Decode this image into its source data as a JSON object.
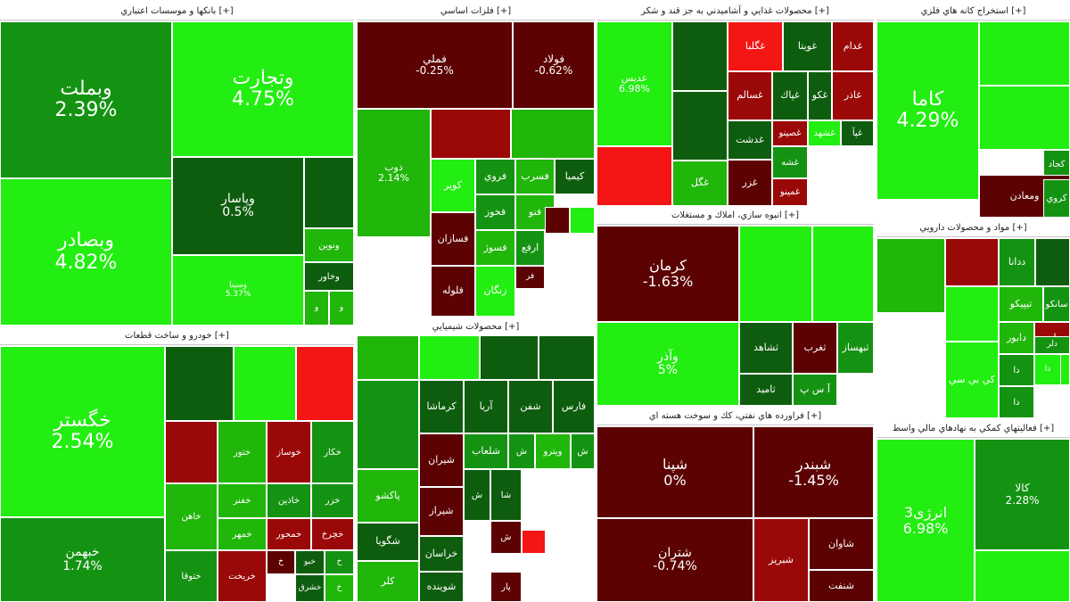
{
  "colors": {
    "strong_pos": "#22ee11",
    "pos": "#20b60a",
    "mid_pos": "#149312",
    "weak_pos": "#0e5d0e",
    "dark_neg": "#5c0202",
    "neg": "#9a0808",
    "strong_neg": "#f41515"
  },
  "sectors": [
    {
      "id": "banks",
      "title": "بانکها و موسسات اعتباري [+]",
      "tiles": [
        {
          "sym": "وبملت",
          "pct": "2.39%",
          "c": "mid_pos"
        },
        {
          "sym": "وتجارت",
          "pct": "4.75%",
          "c": "strong_pos"
        },
        {
          "sym": "وبصادر",
          "pct": "4.82%",
          "c": "strong_pos"
        },
        {
          "sym": "وپاسار",
          "pct": "0.5%",
          "c": "weak_pos"
        },
        {
          "sym": "",
          "pct": "",
          "c": "weak_pos"
        },
        {
          "sym": "وسينا",
          "pct": "5.37%",
          "c": "strong_pos"
        },
        {
          "sym": "ونوين",
          "pct": "",
          "c": "pos"
        },
        {
          "sym": "وخاور",
          "pct": "",
          "c": "weak_pos"
        },
        {
          "sym": "و",
          "pct": "",
          "c": "pos"
        },
        {
          "sym": "و",
          "pct": "",
          "c": "pos"
        }
      ]
    },
    {
      "id": "auto",
      "title": "خودرو و ساخت قطعات [+]",
      "tiles": [
        {
          "sym": "خگستر",
          "pct": "2.54%",
          "c": "strong_pos"
        },
        {
          "sym": "خبهمن",
          "pct": "1.74%",
          "c": "mid_pos"
        },
        {
          "sym": "",
          "pct": "",
          "c": "weak_pos"
        },
        {
          "sym": "",
          "pct": "",
          "c": "strong_pos"
        },
        {
          "sym": "",
          "pct": "",
          "c": "strong_neg"
        },
        {
          "sym": "",
          "pct": "",
          "c": "neg"
        },
        {
          "sym": "ختور",
          "pct": "",
          "c": "pos"
        },
        {
          "sym": "خوساز",
          "pct": "",
          "c": "neg"
        },
        {
          "sym": "خكار",
          "pct": "",
          "c": "mid_pos"
        },
        {
          "sym": "خاهن",
          "pct": "",
          "c": "pos"
        },
        {
          "sym": "خفنر",
          "pct": "",
          "c": "pos"
        },
        {
          "sym": "خاذين",
          "pct": "",
          "c": "mid_pos"
        },
        {
          "sym": "خزر",
          "pct": "",
          "c": "mid_pos"
        },
        {
          "sym": "خمهر",
          "pct": "",
          "c": "pos"
        },
        {
          "sym": "خمحور",
          "pct": "",
          "c": "neg"
        },
        {
          "sym": "خچرخ",
          "pct": "",
          "c": "neg"
        },
        {
          "sym": "ختوقا",
          "pct": "",
          "c": "mid_pos"
        },
        {
          "sym": "خريخت",
          "pct": "",
          "c": "neg"
        },
        {
          "sym": "خ",
          "pct": "",
          "c": "dark_neg"
        },
        {
          "sym": "خبو",
          "pct": "",
          "c": "weak_pos"
        },
        {
          "sym": "خ",
          "pct": "",
          "c": "mid_pos"
        },
        {
          "sym": "خشرق",
          "pct": "",
          "c": "weak_pos"
        },
        {
          "sym": "خ",
          "pct": "",
          "c": "pos"
        }
      ]
    },
    {
      "id": "metals",
      "title": "فلزات اساسي [+]",
      "tiles": [
        {
          "sym": "فملي",
          "pct": "-0.25%",
          "c": "dark_neg"
        },
        {
          "sym": "فولاد",
          "pct": "-0.62%",
          "c": "dark_neg"
        },
        {
          "sym": "ذوب",
          "pct": "2.14%",
          "c": "pos"
        },
        {
          "sym": "",
          "pct": "",
          "c": "neg"
        },
        {
          "sym": "",
          "pct": "",
          "c": "pos"
        },
        {
          "sym": "كوير",
          "pct": "",
          "c": "strong_pos"
        },
        {
          "sym": "فروي",
          "pct": "",
          "c": "mid_pos"
        },
        {
          "sym": "فسرب",
          "pct": "",
          "c": "pos"
        },
        {
          "sym": "كيميا",
          "pct": "",
          "c": "weak_pos"
        },
        {
          "sym": "فسازان",
          "pct": "",
          "c": "dark_neg"
        },
        {
          "sym": "فخوز",
          "pct": "",
          "c": "mid_pos"
        },
        {
          "sym": "فنو",
          "pct": "",
          "c": "pos"
        },
        {
          "sym": "",
          "pct": "",
          "c": "dark_neg"
        },
        {
          "sym": "",
          "pct": "",
          "c": "strong_pos"
        },
        {
          "sym": "فسوژ",
          "pct": "",
          "c": "pos"
        },
        {
          "sym": "ارفع",
          "pct": "",
          "c": "mid_pos"
        },
        {
          "sym": "فلوله",
          "pct": "",
          "c": "dark_neg"
        },
        {
          "sym": "زنگان",
          "pct": "",
          "c": "strong_pos"
        },
        {
          "sym": "فر",
          "pct": "",
          "c": "dark_neg"
        }
      ]
    },
    {
      "id": "chemicals",
      "title": "محصولات شيميايي [+]",
      "tiles": [
        {
          "sym": "",
          "pct": "",
          "c": "pos"
        },
        {
          "sym": "",
          "pct": "",
          "c": "strong_pos"
        },
        {
          "sym": "",
          "pct": "",
          "c": "weak_pos"
        },
        {
          "sym": "",
          "pct": "",
          "c": "weak_pos"
        },
        {
          "sym": "",
          "pct": "",
          "c": "mid_pos"
        },
        {
          "sym": "كرماشا",
          "pct": "",
          "c": "weak_pos"
        },
        {
          "sym": "آريا",
          "pct": "",
          "c": "weak_pos"
        },
        {
          "sym": "شفن",
          "pct": "",
          "c": "weak_pos"
        },
        {
          "sym": "فارس",
          "pct": "",
          "c": "weak_pos"
        },
        {
          "sym": "پاكشو",
          "pct": "",
          "c": "pos"
        },
        {
          "sym": "شيران",
          "pct": "",
          "c": "dark_neg"
        },
        {
          "sym": "شلعاب",
          "pct": "",
          "c": "mid_pos"
        },
        {
          "sym": "ش",
          "pct": "",
          "c": "mid_pos"
        },
        {
          "sym": "ويترو",
          "pct": "",
          "c": "pos"
        },
        {
          "sym": "ش",
          "pct": "",
          "c": "mid_pos"
        },
        {
          "sym": "شگويا",
          "pct": "",
          "c": "weak_pos"
        },
        {
          "sym": "شيراز",
          "pct": "",
          "c": "dark_neg"
        },
        {
          "sym": "ش",
          "pct": "",
          "c": "weak_pos"
        },
        {
          "sym": "شا",
          "pct": "",
          "c": "weak_pos"
        },
        {
          "sym": "خراسان",
          "pct": "",
          "c": "weak_pos"
        },
        {
          "sym": "ش",
          "pct": "",
          "c": "dark_neg"
        },
        {
          "sym": "",
          "pct": "",
          "c": "strong_neg"
        },
        {
          "sym": "كلر",
          "pct": "",
          "c": "pos"
        },
        {
          "sym": "شوينده",
          "pct": "",
          "c": "weak_pos"
        },
        {
          "sym": "پار",
          "pct": "",
          "c": "dark_neg"
        }
      ]
    },
    {
      "id": "food",
      "title": "محصولات غذايي و آشاميدني به جز قند و شكر [+]",
      "tiles": [
        {
          "sym": "عدیس",
          "pct": "6.98%",
          "c": "strong_pos"
        },
        {
          "sym": "",
          "pct": "",
          "c": "weak_pos"
        },
        {
          "sym": "",
          "pct": "",
          "c": "weak_pos"
        },
        {
          "sym": "",
          "pct": "",
          "c": "strong_neg"
        },
        {
          "sym": "غگل",
          "pct": "",
          "c": "pos"
        },
        {
          "sym": "غگلبا",
          "pct": "",
          "c": "strong_neg"
        },
        {
          "sym": "غويتا",
          "pct": "",
          "c": "weak_pos"
        },
        {
          "sym": "غدام",
          "pct": "",
          "c": "neg"
        },
        {
          "sym": "غسالم",
          "pct": "",
          "c": "neg"
        },
        {
          "sym": "غپاك",
          "pct": "",
          "c": "weak_pos"
        },
        {
          "sym": "غكو",
          "pct": "",
          "c": "weak_pos"
        },
        {
          "sym": "غاذر",
          "pct": "",
          "c": "neg"
        },
        {
          "sym": "غدشت",
          "pct": "",
          "c": "weak_pos"
        },
        {
          "sym": "غصينو",
          "pct": "",
          "c": "neg"
        },
        {
          "sym": "غشهد",
          "pct": "",
          "c": "strong_pos"
        },
        {
          "sym": "غپآ",
          "pct": "",
          "c": "weak_pos"
        },
        {
          "sym": "غزر",
          "pct": "",
          "c": "dark_neg"
        },
        {
          "sym": "غشه",
          "pct": "",
          "c": "mid_pos"
        },
        {
          "sym": "غمينو",
          "pct": "",
          "c": "neg"
        }
      ]
    },
    {
      "id": "construction",
      "title": "انبوه سازي، املاك و مستغلات [+]",
      "tiles": [
        {
          "sym": "كرمان",
          "pct": "-1.63%",
          "c": "dark_neg"
        },
        {
          "sym": "",
          "pct": "",
          "c": "strong_pos"
        },
        {
          "sym": "",
          "pct": "",
          "c": "strong_pos"
        },
        {
          "sym": "وآذر",
          "pct": "5%",
          "c": "strong_pos"
        },
        {
          "sym": "ثشاهد",
          "pct": "",
          "c": "weak_pos"
        },
        {
          "sym": "ثغرب",
          "pct": "",
          "c": "dark_neg"
        },
        {
          "sym": "ثبهساز",
          "pct": "",
          "c": "mid_pos"
        },
        {
          "sym": "آ س پ",
          "pct": "",
          "c": "mid_pos"
        },
        {
          "sym": "ثاميد",
          "pct": "",
          "c": "weak_pos"
        }
      ]
    },
    {
      "id": "refining",
      "title": "فراورده هاي نفتي، كك و سوخت هسته اي [+]",
      "tiles": [
        {
          "sym": "شپنا",
          "pct": "0%",
          "c": "dark_neg"
        },
        {
          "sym": "شبندر",
          "pct": "-1.45%",
          "c": "dark_neg"
        },
        {
          "sym": "شتران",
          "pct": "-0.74%",
          "c": "dark_neg"
        },
        {
          "sym": "شبريز",
          "pct": "",
          "c": "neg"
        },
        {
          "sym": "شاوان",
          "pct": "",
          "c": "dark_neg"
        },
        {
          "sym": "شنفت",
          "pct": "",
          "c": "dark_neg"
        }
      ]
    },
    {
      "id": "mining",
      "title": "استخراج كانه هاي فلزي [+]",
      "tiles": [
        {
          "sym": "كاما",
          "pct": "4.29%",
          "c": "strong_pos"
        },
        {
          "sym": "",
          "pct": "",
          "c": "strong_pos"
        },
        {
          "sym": "",
          "pct": "",
          "c": "strong_pos"
        },
        {
          "sym": "",
          "pct": "",
          "c": "mid_pos"
        },
        {
          "sym": "كجاد",
          "pct": "",
          "c": "mid_pos"
        },
        {
          "sym": "ومعادن",
          "pct": "",
          "c": "dark_neg"
        },
        {
          "sym": "كروي",
          "pct": "",
          "c": "mid_pos"
        }
      ]
    },
    {
      "id": "pharma",
      "title": "مواد و محصولات دارويي [+]",
      "tiles": [
        {
          "sym": "",
          "pct": "",
          "c": "pos"
        },
        {
          "sym": "",
          "pct": "",
          "c": "neg"
        },
        {
          "sym": "ددانا",
          "pct": "",
          "c": "mid_pos"
        },
        {
          "sym": "",
          "pct": "",
          "c": "weak_pos"
        },
        {
          "sym": "تيپيكو",
          "pct": "",
          "c": "pos"
        },
        {
          "sym": "سانكو",
          "pct": "",
          "c": "mid_pos"
        },
        {
          "sym": "",
          "pct": "",
          "c": "strong_pos"
        },
        {
          "sym": "دابور",
          "pct": "",
          "c": "pos"
        },
        {
          "sym": "داوه",
          "pct": "",
          "c": "neg"
        },
        {
          "sym": "دلر",
          "pct": "",
          "c": "mid_pos"
        },
        {
          "sym": "دا",
          "pct": "",
          "c": "strong_pos"
        },
        {
          "sym": "دا",
          "pct": "",
          "c": "strong_pos"
        },
        {
          "sym": "كي بي سي",
          "pct": "",
          "c": "strong_pos"
        },
        {
          "sym": "دا",
          "pct": "",
          "c": "mid_pos"
        },
        {
          "sym": "دا",
          "pct": "",
          "c": "mid_pos"
        }
      ]
    },
    {
      "id": "finance",
      "title": "فعاليتهاي كمكي به نهادهاي مالي واسط [+]",
      "tiles": [
        {
          "sym": "انرژی3",
          "pct": "6.98%",
          "c": "strong_pos"
        },
        {
          "sym": "كالا",
          "pct": "2.28%",
          "c": "mid_pos"
        },
        {
          "sym": "",
          "pct": "",
          "c": "strong_pos"
        }
      ]
    }
  ]
}
